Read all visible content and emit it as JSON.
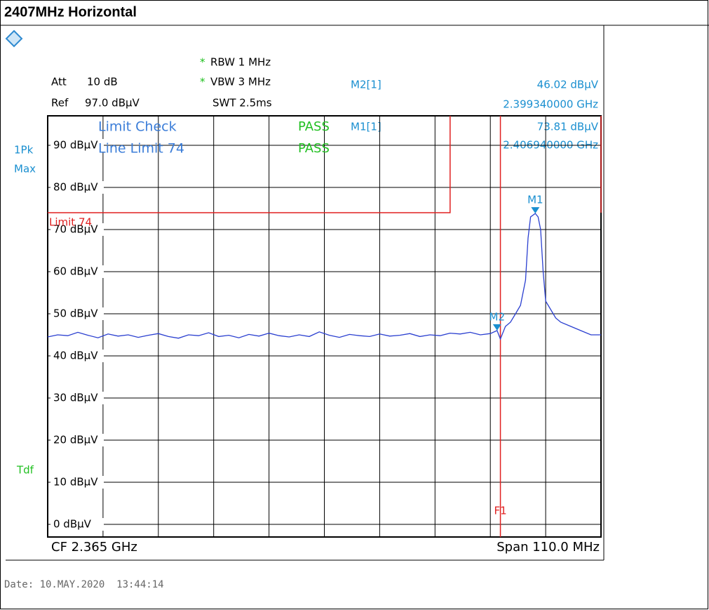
{
  "header": {
    "title": "2407MHz Horizontal"
  },
  "settings": {
    "rbw_mark": "*",
    "rbw": "RBW 1 MHz",
    "vbw_mark": "*",
    "vbw": "VBW 3 MHz",
    "swt": "SWT 2.5ms",
    "att_label": "Att",
    "att": "10 dB",
    "ref_label": "Ref",
    "ref": "97.0 dBµV",
    "trace_mode": "1Pk",
    "trace_detector": "Max",
    "tdf": "Tdf",
    "cf": "CF 2.365 GHz",
    "span": "Span 110.0 MHz",
    "date": "Date: 10.MAY.2020  13:44:14"
  },
  "limit_check": {
    "title": "Limit Check",
    "result": "PASS",
    "line": "Line Limit 74",
    "line_result": "PASS"
  },
  "chart_data": {
    "type": "line",
    "xlim": [
      2310,
      2420
    ],
    "ylim": [
      -3,
      97
    ],
    "yticks": [
      {
        "value": 90,
        "label": "90 dBµV"
      },
      {
        "value": 80,
        "label": "80 dBµV"
      },
      {
        "value": 70,
        "label": "70 dBµV"
      },
      {
        "value": 60,
        "label": "60 dBµV"
      },
      {
        "value": 50,
        "label": "50 dBµV"
      },
      {
        "value": 40,
        "label": "40 dBµV"
      },
      {
        "value": 30,
        "label": "30 dBµV"
      },
      {
        "value": 20,
        "label": "20 dBµV"
      },
      {
        "value": 10,
        "label": "10 dBµV"
      },
      {
        "value": 0,
        "label": "0 dBµV"
      }
    ],
    "grid": true,
    "series": [
      {
        "color": "#2a3fd0",
        "x": [
          2310,
          2312,
          2314,
          2316,
          2318,
          2320,
          2322,
          2324,
          2326,
          2328,
          2330,
          2332,
          2334,
          2336,
          2338,
          2340,
          2342,
          2344,
          2346,
          2348,
          2350,
          2352,
          2354,
          2356,
          2358,
          2360,
          2362,
          2364,
          2366,
          2368,
          2370,
          2372,
          2374,
          2376,
          2378,
          2380,
          2382,
          2384,
          2386,
          2388,
          2390,
          2392,
          2394,
          2396,
          2398,
          2399.34,
          2400,
          2401,
          2402,
          2403,
          2404,
          2405,
          2405.5,
          2406,
          2406.94,
          2407.5,
          2408,
          2408.5,
          2409,
          2410,
          2411,
          2412,
          2414,
          2416,
          2418,
          2420
        ],
        "values": [
          44.5,
          45,
          44.8,
          45.6,
          44.9,
          44.3,
          45.2,
          44.7,
          45,
          44.4,
          44.9,
          45.3,
          44.6,
          44.2,
          45,
          44.8,
          45.5,
          44.6,
          44.9,
          44.3,
          45.1,
          44.7,
          45.4,
          44.8,
          44.5,
          45,
          44.6,
          45.7,
          44.9,
          44.4,
          45.1,
          44.8,
          44.6,
          45.2,
          44.7,
          44.9,
          45.3,
          44.6,
          45,
          44.8,
          45.4,
          45.2,
          45.6,
          45,
          45.3,
          46.02,
          44,
          47,
          48,
          50,
          52,
          58,
          68,
          73,
          73.81,
          73,
          70,
          60,
          53,
          51,
          49,
          48,
          47,
          46,
          45,
          45
        ]
      }
    ],
    "limit": {
      "label": "Limit 74",
      "value": 74,
      "x_end": 2390,
      "color": "#e02020"
    },
    "markers": [
      {
        "name": "M1",
        "label": "M1[1]",
        "x": 2406.94,
        "value": 73.81,
        "value_label": "73.81 dBµV",
        "x_label": "2.406940000 GHz"
      },
      {
        "name": "M2",
        "label": "M2[1]",
        "x": 2399.34,
        "value": 46.02,
        "value_label": "46.02 dBµV",
        "x_label": "2.399340000 GHz"
      }
    ],
    "line_f1": {
      "label": "F1",
      "x": 2400
    }
  }
}
